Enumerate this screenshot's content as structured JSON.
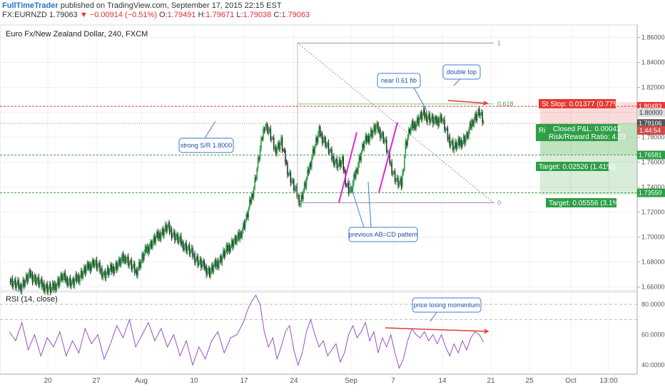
{
  "header": {
    "brand": "FullTimeTrader",
    "published": "published on TradingView.com, September 17, 2015 22:15 EST",
    "symbol": "FX:EURNZD",
    "last": "1.79063",
    "arrow": "▼",
    "change": "−0.00914 (−0.51%)",
    "o_label": "O:",
    "o_value": "1.79491",
    "h_label": "H:",
    "h_value": "1.79671",
    "l_label": "L:",
    "l_value": "1.79038",
    "c_label": "C:",
    "c_value": "1.79063"
  },
  "colors": {
    "up": "#2e9e48",
    "down": "#333333",
    "resistance": "#e53935",
    "support": "#43a047",
    "rsi": "#9b4fc0",
    "pattern": "#e026d6",
    "callout_border": "#3a7bd5",
    "callout_text": "#1f4fa8"
  },
  "chart_data": [
    {
      "type": "candlestick",
      "title": "Euro Fx/New Zealand Dollar, 240, FXCM",
      "x_tick_labels": [
        "20",
        "27",
        "Aug",
        "10",
        "17",
        "24",
        "Sep",
        "7",
        "14",
        "21",
        "25",
        "Oct",
        "13:00"
      ],
      "y_ticks": [
        1.66,
        1.68,
        1.7,
        1.72,
        1.74,
        1.76,
        1.78,
        1.8,
        1.82,
        1.84,
        1.86
      ],
      "y_tick_labels": [
        "1.66000",
        "1.68000",
        "1.70000",
        "1.72000",
        "1.74000",
        "1.76000",
        "1.78000",
        "1.80000",
        "1.82000",
        "1.84000",
        "1.86000"
      ],
      "ylim": [
        1.657,
        1.87
      ],
      "grid": true,
      "close_path": [
        [
          0,
          1.665
        ],
        [
          10,
          1.66
        ],
        [
          20,
          1.67
        ],
        [
          30,
          1.662
        ],
        [
          40,
          1.658
        ],
        [
          50,
          1.668
        ],
        [
          60,
          1.663
        ],
        [
          70,
          1.672
        ],
        [
          80,
          1.68
        ],
        [
          90,
          1.67
        ],
        [
          100,
          1.676
        ],
        [
          110,
          1.684
        ],
        [
          120,
          1.672
        ],
        [
          130,
          1.69
        ],
        [
          140,
          1.7
        ],
        [
          150,
          1.708
        ],
        [
          160,
          1.698
        ],
        [
          170,
          1.69
        ],
        [
          180,
          1.68
        ],
        [
          190,
          1.672
        ],
        [
          200,
          1.682
        ],
        [
          210,
          1.694
        ],
        [
          218,
          1.7
        ],
        [
          225,
          1.715
        ],
        [
          232,
          1.74
        ],
        [
          238,
          1.77
        ],
        [
          242,
          1.79
        ],
        [
          246,
          1.786
        ],
        [
          252,
          1.77
        ],
        [
          258,
          1.776
        ],
        [
          264,
          1.754
        ],
        [
          270,
          1.74
        ],
        [
          276,
          1.728
        ],
        [
          282,
          1.746
        ],
        [
          288,
          1.768
        ],
        [
          294,
          1.784
        ],
        [
          300,
          1.776
        ],
        [
          306,
          1.764
        ],
        [
          312,
          1.758
        ],
        [
          316,
          1.76
        ],
        [
          320,
          1.742
        ],
        [
          324,
          1.736
        ],
        [
          330,
          1.756
        ],
        [
          336,
          1.774
        ],
        [
          342,
          1.782
        ],
        [
          348,
          1.788
        ],
        [
          352,
          1.784
        ],
        [
          356,
          1.778
        ],
        [
          360,
          1.764
        ],
        [
          364,
          1.752
        ],
        [
          368,
          1.744
        ],
        [
          372,
          1.742
        ],
        [
          376,
          1.774
        ],
        [
          380,
          1.786
        ],
        [
          386,
          1.792
        ],
        [
          392,
          1.798
        ],
        [
          398,
          1.796
        ],
        [
          404,
          1.792
        ],
        [
          410,
          1.796
        ],
        [
          416,
          1.78
        ],
        [
          422,
          1.772
        ],
        [
          428,
          1.776
        ],
        [
          434,
          1.78
        ],
        [
          440,
          1.794
        ],
        [
          446,
          1.8
        ],
        [
          450,
          1.791
        ]
      ],
      "horizontal_levels": [
        {
          "price": 1.80483,
          "label": "1.80483",
          "kind": "resistance"
        },
        {
          "price": 1.79106,
          "label": "1.79106",
          "kind": "current"
        },
        {
          "price": 1.76581,
          "label": "1.76581",
          "kind": "support"
        },
        {
          "price": 1.7355,
          "label": "1.73550",
          "kind": "support"
        }
      ],
      "axis_badges": [
        {
          "label": "1.80000",
          "price": 1.7998,
          "kind": "grey"
        },
        {
          "label": "1:44:54",
          "price": 1.7855,
          "kind": "time"
        }
      ],
      "fib": {
        "high": 1.8555,
        "low": 1.7275,
        "level_0618": 1.8067,
        "labels": {
          "one": "1",
          "fib618": "0.618",
          "zero": "0"
        }
      },
      "positions": {
        "stop_text": "St  Stop: 0.01377 (0.77%)",
        "closed_pl": "Closed P&L: 0.00043",
        "risk_reward": "Risk/Reward Ratio: 4.03",
        "side_fragment": "Ri",
        "target1": "Target: 0.02526 (1.41%)",
        "target2": "Target: 0.05556 (3.1%)"
      },
      "annotations": {
        "strong_sr": "strong S/R 1.8000",
        "near_fib": "near 0.61 fib",
        "double_top": "double top",
        "abcd": "previous AB=CD pattern"
      }
    },
    {
      "type": "line",
      "title": "RSI (14, close)",
      "y_ticks": [
        40,
        60,
        80
      ],
      "y_tick_labels": [
        "40.0000",
        "60.0000",
        "80.0000"
      ],
      "ylim": [
        34,
        88
      ],
      "series": [
        {
          "values": [
            [
              0,
              62
            ],
            [
              6,
              56
            ],
            [
              12,
              68
            ],
            [
              18,
              50
            ],
            [
              24,
              60
            ],
            [
              30,
              46
            ],
            [
              36,
              58
            ],
            [
              42,
              52
            ],
            [
              48,
              62
            ],
            [
              54,
              46
            ],
            [
              60,
              56
            ],
            [
              66,
              48
            ],
            [
              72,
              64
            ],
            [
              78,
              54
            ],
            [
              84,
              60
            ],
            [
              90,
              44
            ],
            [
              96,
              54
            ],
            [
              102,
              66
            ],
            [
              108,
              58
            ],
            [
              114,
              70
            ],
            [
              120,
              52
            ],
            [
              126,
              60
            ],
            [
              132,
              68
            ],
            [
              138,
              56
            ],
            [
              144,
              64
            ],
            [
              150,
              52
            ],
            [
              156,
              60
            ],
            [
              162,
              46
            ],
            [
              168,
              56
            ],
            [
              174,
              40
            ],
            [
              180,
              52
            ],
            [
              186,
              44
            ],
            [
              192,
              56
            ],
            [
              198,
              62
            ],
            [
              204,
              48
            ],
            [
              210,
              58
            ],
            [
              216,
              60
            ],
            [
              222,
              68
            ],
            [
              226,
              76
            ],
            [
              230,
              82
            ],
            [
              234,
              86
            ],
            [
              238,
              80
            ],
            [
              242,
              62
            ],
            [
              246,
              52
            ],
            [
              250,
              58
            ],
            [
              254,
              44
            ],
            [
              258,
              52
            ],
            [
              262,
              62
            ],
            [
              266,
              66
            ],
            [
              270,
              50
            ],
            [
              274,
              40
            ],
            [
              278,
              48
            ],
            [
              282,
              62
            ],
            [
              286,
              70
            ],
            [
              290,
              60
            ],
            [
              294,
              52
            ],
            [
              298,
              56
            ],
            [
              302,
              46
            ],
            [
              306,
              50
            ],
            [
              310,
              54
            ],
            [
              314,
              42
            ],
            [
              318,
              48
            ],
            [
              322,
              60
            ],
            [
              326,
              66
            ],
            [
              330,
              58
            ],
            [
              334,
              62
            ],
            [
              338,
              68
            ],
            [
              342,
              56
            ],
            [
              346,
              62
            ],
            [
              350,
              48
            ],
            [
              354,
              58
            ],
            [
              358,
              52
            ],
            [
              362,
              60
            ],
            [
              366,
              48
            ],
            [
              370,
              38
            ],
            [
              374,
              44
            ],
            [
              378,
              56
            ],
            [
              382,
              64
            ],
            [
              386,
              60
            ],
            [
              390,
              58
            ],
            [
              394,
              62
            ],
            [
              398,
              56
            ],
            [
              402,
              60
            ],
            [
              406,
              54
            ],
            [
              410,
              60
            ],
            [
              414,
              52
            ],
            [
              418,
              46
            ],
            [
              422,
              54
            ],
            [
              426,
              48
            ],
            [
              430,
              56
            ],
            [
              434,
              50
            ],
            [
              438,
              58
            ],
            [
              442,
              62
            ],
            [
              446,
              60
            ],
            [
              450,
              55
            ]
          ]
        }
      ],
      "annotation": "price losing momentum"
    }
  ]
}
